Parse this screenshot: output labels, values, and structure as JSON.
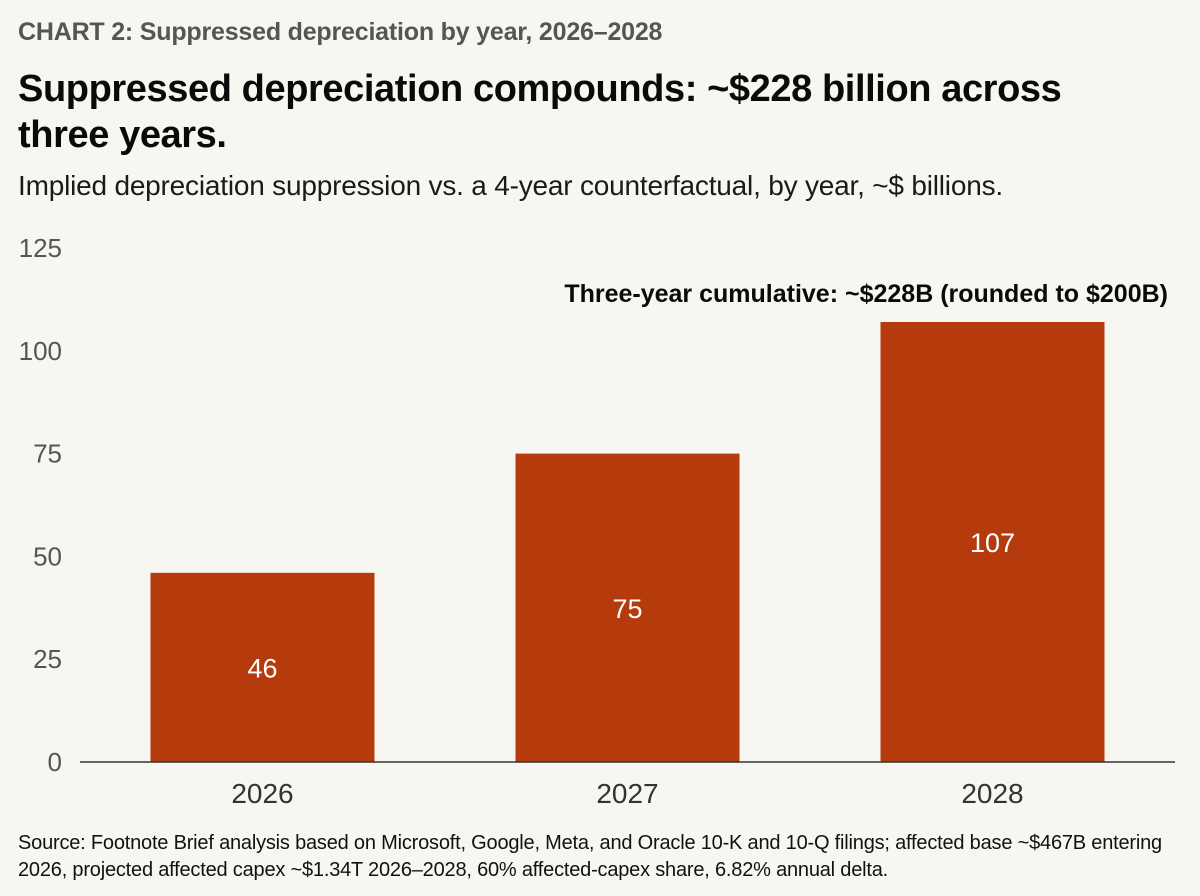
{
  "header": {
    "eyebrow": "CHART 2: Suppressed depreciation by year, 2026–2028",
    "headline": "Suppressed depreciation compounds: ~$228 billion across three years.",
    "subtitle": "Implied depreciation suppression vs. a 4-year counterfactual, by year, ~$ billions."
  },
  "chart_data": {
    "type": "bar",
    "title": "Suppressed depreciation compounds: ~$228 billion across three years.",
    "subtitle": "Implied depreciation suppression vs. a 4-year counterfactual, by year, ~$ billions.",
    "categories": [
      "2026",
      "2027",
      "2028"
    ],
    "values": [
      46,
      75,
      107
    ],
    "data_labels": [
      "46",
      "75",
      "107"
    ],
    "xlabel": "",
    "ylabel": "",
    "ylim": [
      0,
      125
    ],
    "yticks": [
      0,
      25,
      50,
      75,
      100,
      125
    ],
    "grid": false,
    "bar_color": "#b53a0c",
    "annotation": "Three-year cumulative: ~$228B (rounded to $200B)"
  },
  "footer": {
    "source": "Source: Footnote Brief analysis based on Microsoft, Google, Meta, and Oracle 10-K and 10-Q filings; affected base ~$467B entering 2026, projected affected capex ~$1.34T 2026–2028, 60% affected-capex share, 6.82% annual delta."
  }
}
